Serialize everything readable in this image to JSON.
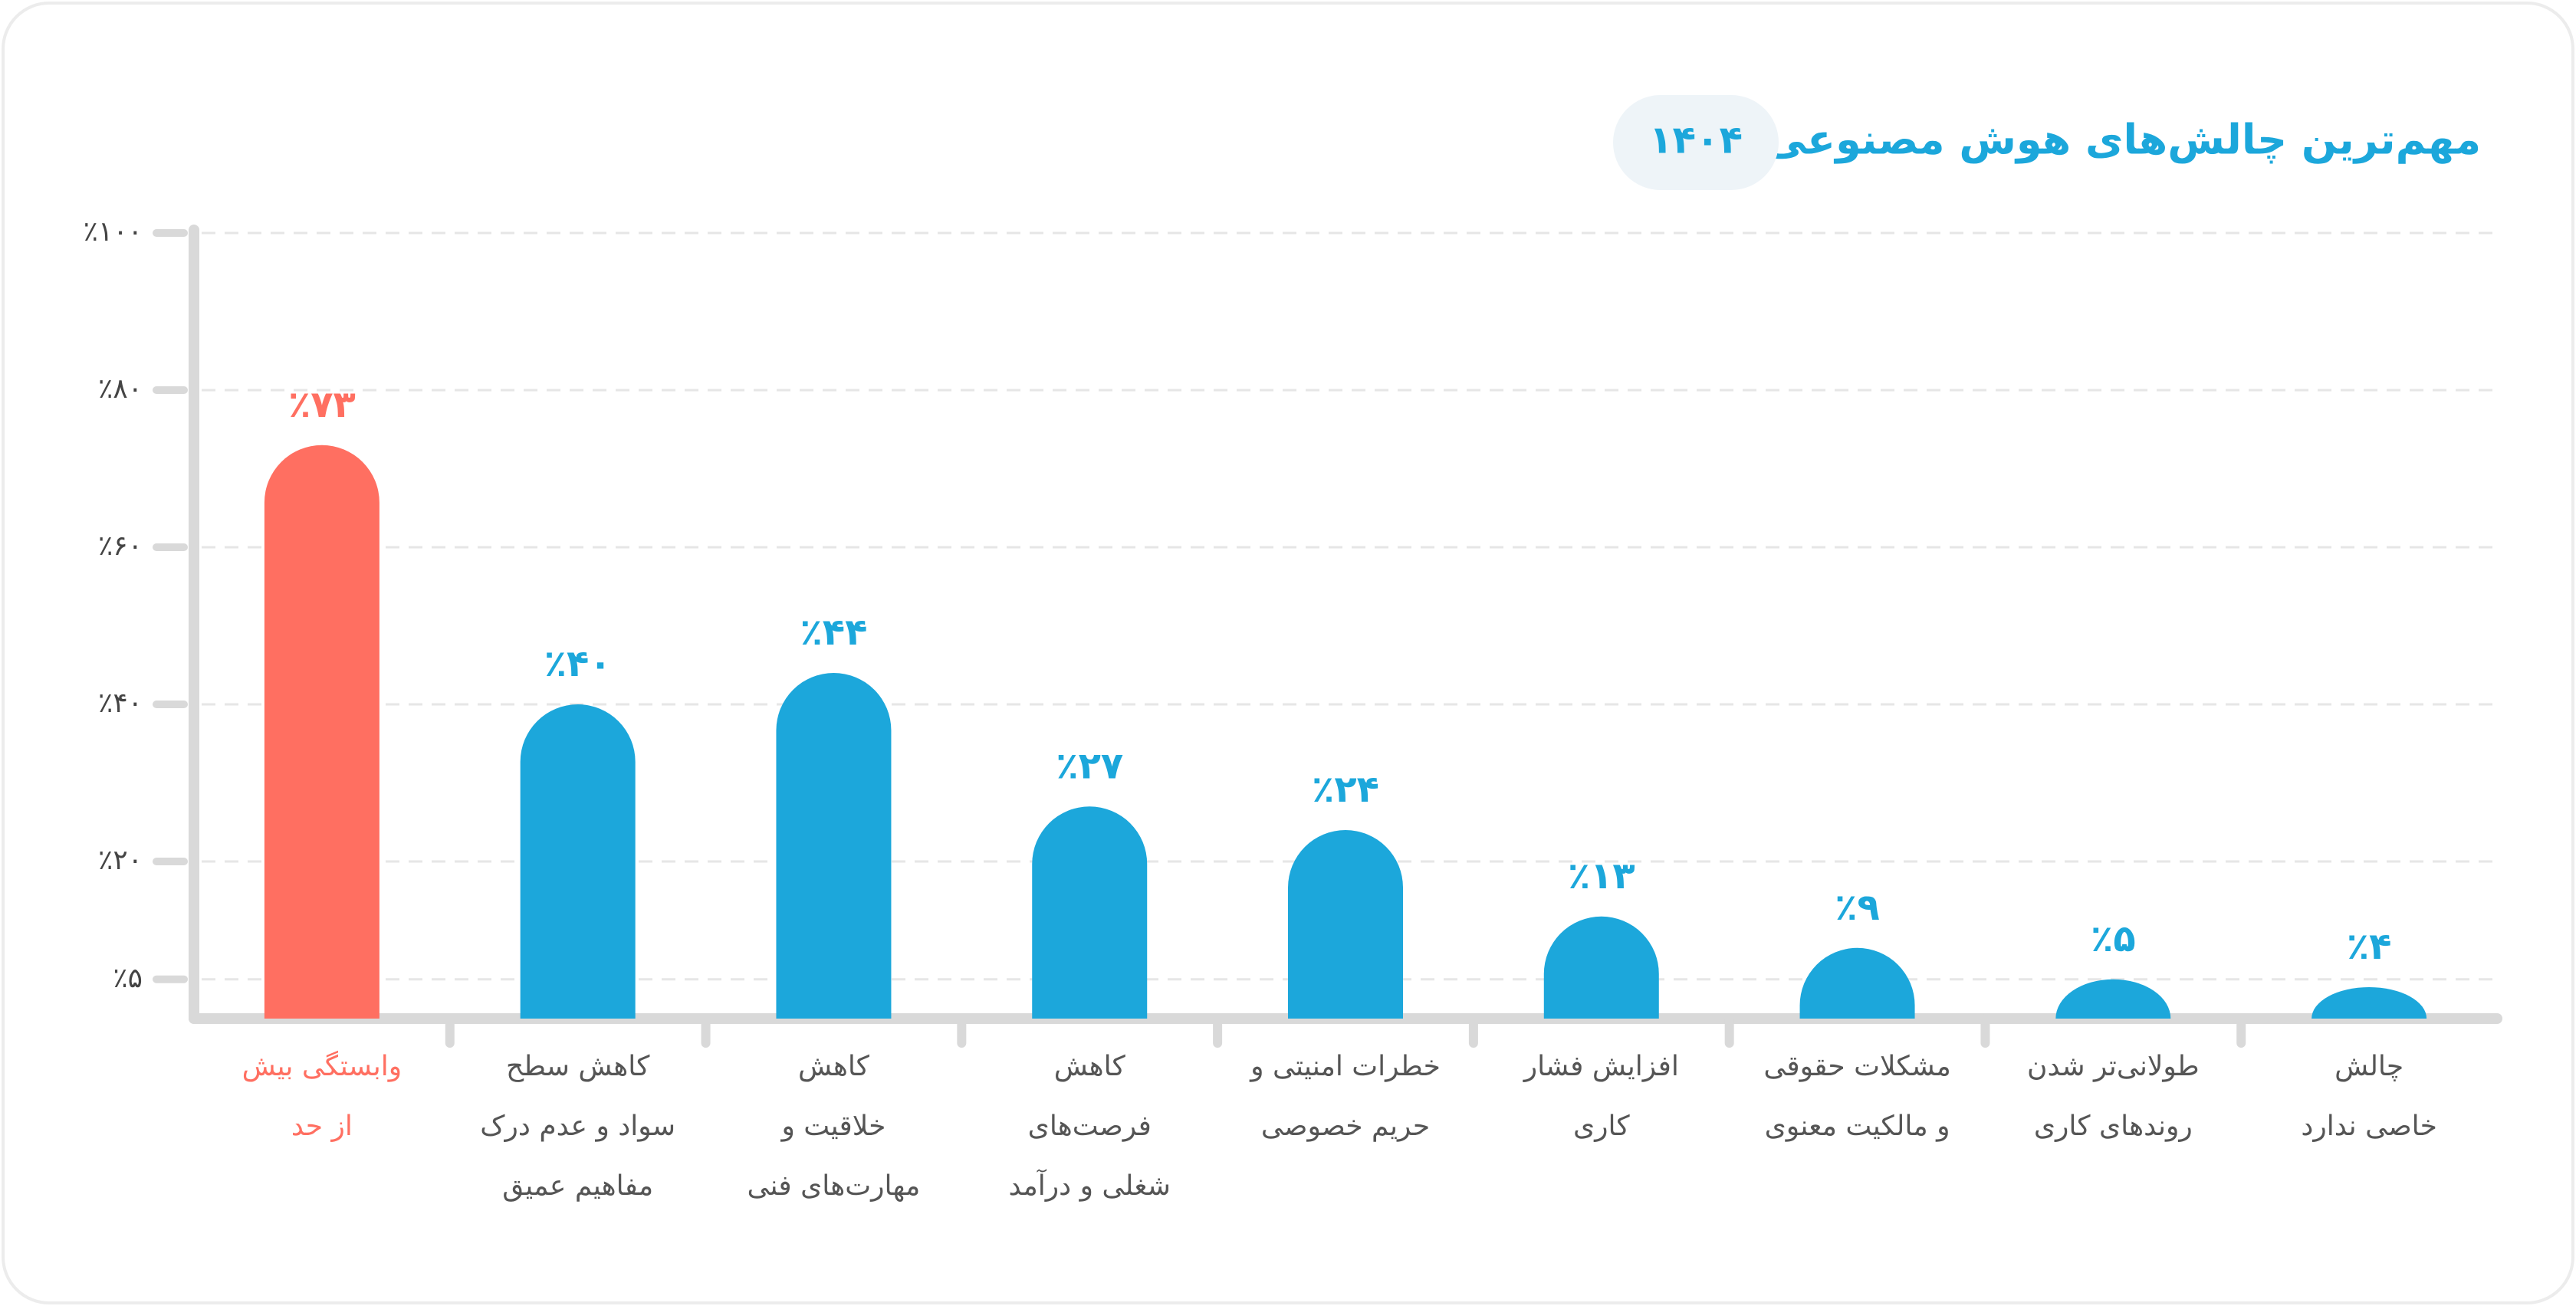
{
  "chart_data": {
    "type": "bar",
    "title": "مهم‌ترین چالش‌های هوش مصنوعی",
    "year": "۱۴۰۴",
    "categories": [
      [
        "وابستگی بیش",
        "از حد"
      ],
      [
        "کاهش سطح",
        "سواد و عدم درک",
        "مفاهیم عمیق"
      ],
      [
        "کاهش",
        "خلاقیت و",
        "مهارت‌های فنی"
      ],
      [
        "کاهش",
        "فرصت‌های",
        "شغلی و درآمد"
      ],
      [
        "خطرات امنیتی و",
        "حریم خصوصی"
      ],
      [
        "افزایش فشار",
        "کاری"
      ],
      [
        "مشکلات حقوقی",
        "و مالکیت معنوی"
      ],
      [
        "طولانی‌تر شدن",
        "روندهای کاری"
      ],
      [
        "چالش",
        "خاصی ندارد"
      ]
    ],
    "values": [
      73,
      40,
      44,
      27,
      24,
      13,
      9,
      5,
      4
    ],
    "value_labels": [
      "٪۷۳",
      "٪۴۰",
      "٪۴۴",
      "٪۲۷",
      "٪۲۴",
      "٪۱۳",
      "٪۹",
      "٪۵",
      "٪۴"
    ],
    "colors": [
      "#ff6f61",
      "#1ca7db",
      "#1ca7db",
      "#1ca7db",
      "#1ca7db",
      "#1ca7db",
      "#1ca7db",
      "#1ca7db",
      "#1ca7db"
    ],
    "category_colors": [
      "#ff6f61",
      "#555555",
      "#555555",
      "#555555",
      "#555555",
      "#555555",
      "#555555",
      "#555555",
      "#555555"
    ],
    "ylim": [
      0,
      100
    ],
    "yticks": [
      {
        "value": 100,
        "label": "٪۱۰۰"
      },
      {
        "value": 80,
        "label": "٪۸۰"
      },
      {
        "value": 60,
        "label": "٪۶۰"
      },
      {
        "value": 40,
        "label": "٪۴۰"
      },
      {
        "value": 20,
        "label": "٪۲۰"
      },
      {
        "value": 5,
        "label": "٪۵"
      }
    ],
    "grid": true
  }
}
